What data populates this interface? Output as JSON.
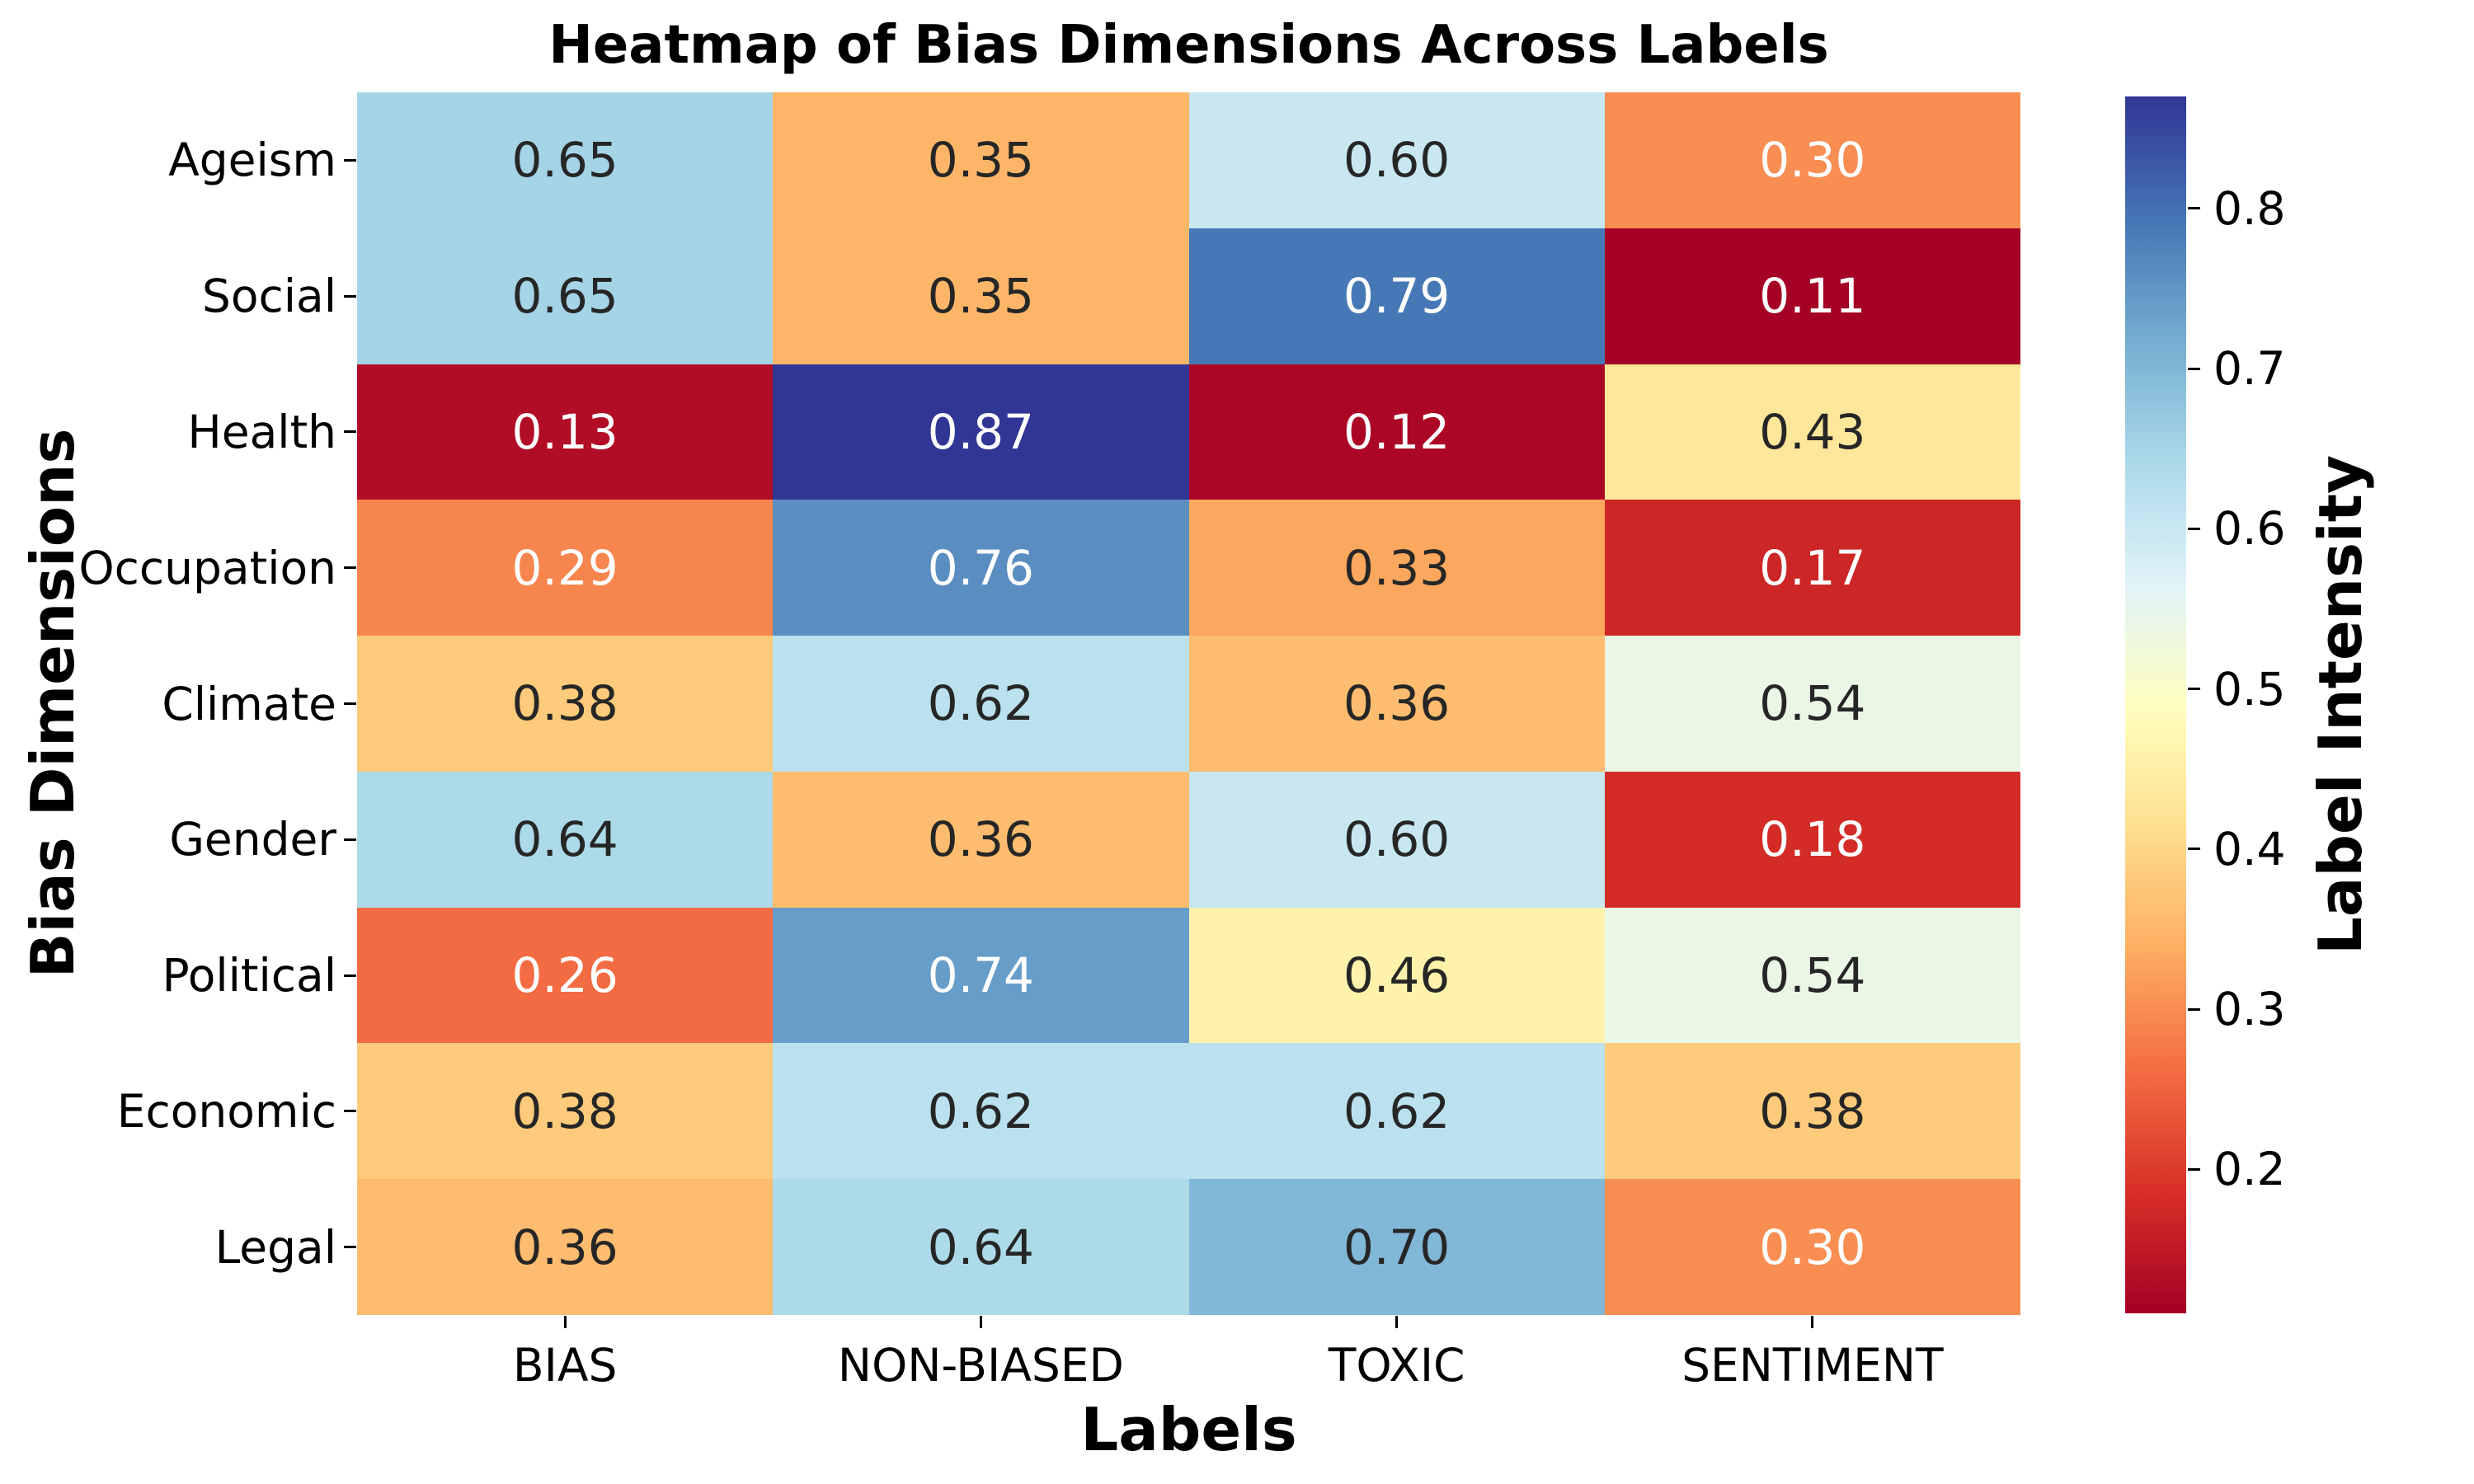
{
  "figure": {
    "background": "#ffffff"
  },
  "chart_data": {
    "type": "heatmap",
    "title": "Heatmap of Bias Dimensions Across Labels",
    "xlabel": "Labels",
    "ylabel": "Bias Dimensions",
    "colorbar_label": "Label Intensity",
    "x_categories": [
      "BIAS",
      "NON-BIASED",
      "TOXIC",
      "SENTIMENT"
    ],
    "y_categories": [
      "Ageism",
      "Social",
      "Health",
      "Occupation",
      "Climate",
      "Gender",
      "Political",
      "Economic",
      "Legal"
    ],
    "values": [
      [
        0.65,
        0.35,
        0.6,
        0.3
      ],
      [
        0.65,
        0.35,
        0.79,
        0.11
      ],
      [
        0.13,
        0.87,
        0.12,
        0.43
      ],
      [
        0.29,
        0.76,
        0.33,
        0.17
      ],
      [
        0.38,
        0.62,
        0.36,
        0.54
      ],
      [
        0.64,
        0.36,
        0.6,
        0.18
      ],
      [
        0.26,
        0.74,
        0.46,
        0.54
      ],
      [
        0.38,
        0.62,
        0.62,
        0.38
      ],
      [
        0.36,
        0.64,
        0.7,
        0.3
      ]
    ],
    "vmin": 0.11,
    "vmax": 0.87,
    "value_format": "two-decimals",
    "annotations_on": true,
    "grid": false,
    "colormap": "RdYlBu",
    "colormap_stops": [
      "#a50026",
      "#d73027",
      "#f46d43",
      "#fdae61",
      "#fee090",
      "#ffffbf",
      "#e0f3f8",
      "#abd9e9",
      "#74add1",
      "#4575b4",
      "#313695"
    ],
    "colorbar_ticks": [
      0.2,
      0.3,
      0.4,
      0.5,
      0.6,
      0.7,
      0.8
    ],
    "colorbar_position": "right",
    "annotation_colors": {
      "dark": "#262626",
      "light": "#ffffff"
    },
    "tick_color": "#000000"
  }
}
